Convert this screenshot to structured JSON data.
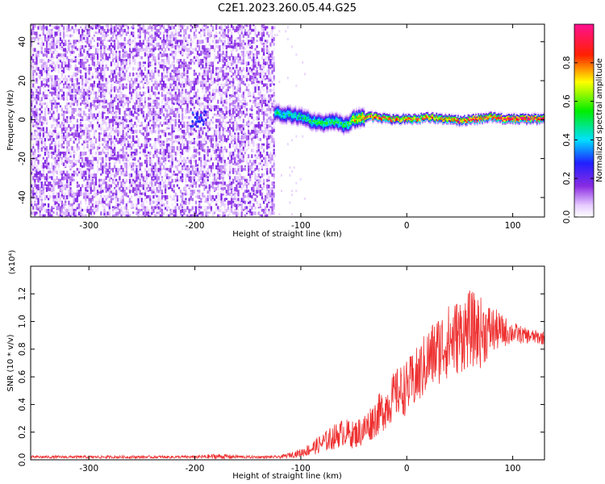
{
  "title": "C2E1.2023.260.05.44.G25",
  "chart_data": [
    {
      "type": "heatmap",
      "title": "C2E1.2023.260.05.44.G25",
      "xlabel": "Height of straight line (km)",
      "ylabel": "Frequency (Hz)",
      "xlim": [
        -355,
        130
      ],
      "ylim": [
        -50,
        49
      ],
      "x_ticks": [
        -300,
        -200,
        -100,
        0,
        100
      ],
      "x_tick_labels": [
        "-300",
        "-200",
        "-100",
        "0",
        "100"
      ],
      "y_ticks": [
        -40,
        -20,
        0,
        20,
        40
      ],
      "y_tick_labels": [
        "-40",
        "-20",
        "0",
        "20",
        "40"
      ],
      "colorbar": {
        "label": "Normalized spectral amplitude",
        "range": [
          0.0,
          1.0
        ],
        "ticks": [
          0.0,
          0.2,
          0.4,
          0.6,
          0.8
        ],
        "tick_labels": [
          "0.0",
          "0.2",
          "0.4",
          "0.6",
          "0.8"
        ],
        "colormap": "rainbow (white-purple-blue-cyan-green-yellow-red-magenta)"
      },
      "features": [
        {
          "description": "broadband noise",
          "x_range": [
            -355,
            -125
          ],
          "freq_range": [
            -50,
            49
          ],
          "amplitude": 0.1
        },
        {
          "description": "weak patch",
          "x_range": [
            -205,
            -190
          ],
          "freq_center": 1,
          "amplitude": 0.25
        },
        {
          "description": "signal line",
          "x_range": [
            -125,
            130
          ],
          "x": [
            -125,
            -110,
            -100,
            -90,
            -80,
            -70,
            -60,
            -55,
            -50,
            -40,
            -30,
            -20,
            -10,
            0,
            10,
            20,
            30,
            40,
            50,
            60,
            70,
            80,
            90,
            100,
            110,
            120,
            130
          ],
          "freq": [
            3,
            2,
            1,
            -1,
            -2,
            -1,
            -3,
            -2,
            0,
            1,
            1,
            0,
            0,
            0,
            0,
            1,
            0,
            0,
            -1,
            0,
            0,
            1,
            0,
            0,
            0,
            0,
            0
          ],
          "amplitude": [
            0.45,
            0.45,
            0.45,
            0.5,
            0.5,
            0.5,
            0.5,
            0.55,
            0.7,
            0.85,
            0.85,
            0.85,
            0.85,
            0.85,
            0.85,
            0.85,
            0.85,
            0.85,
            0.85,
            0.9,
            0.9,
            0.9,
            0.95,
            0.95,
            0.95,
            0.95,
            0.95
          ]
        }
      ]
    },
    {
      "type": "line",
      "xlabel": "Height of straight line (km)",
      "ylabel": "SNR (10 * v/v)",
      "y_multiplier": "(x10⁴)",
      "xlim": [
        -355,
        130
      ],
      "ylim": [
        0.0,
        1.4
      ],
      "x_ticks": [
        -300,
        -200,
        -100,
        0,
        100
      ],
      "x_tick_labels": [
        "-300",
        "-200",
        "-100",
        "0",
        "100"
      ],
      "y_ticks": [
        0.0,
        0.2,
        0.4,
        0.6,
        0.8,
        1.0,
        1.2
      ],
      "y_tick_labels": [
        "0.0",
        "0.2",
        "0.4",
        "0.6",
        "0.8",
        "1.0",
        "1.2"
      ],
      "series": [
        {
          "color": "#ee3030",
          "x": [
            -355,
            -300,
            -250,
            -200,
            -180,
            -150,
            -120,
            -100,
            -90,
            -80,
            -70,
            -60,
            -50,
            -40,
            -30,
            -20,
            -10,
            0,
            10,
            20,
            30,
            40,
            50,
            60,
            70,
            80,
            90,
            100,
            110,
            120,
            130
          ],
          "y": [
            0.02,
            0.02,
            0.02,
            0.02,
            0.025,
            0.02,
            0.02,
            0.05,
            0.08,
            0.12,
            0.16,
            0.2,
            0.18,
            0.22,
            0.3,
            0.38,
            0.48,
            0.52,
            0.6,
            0.72,
            0.8,
            0.86,
            0.9,
            0.95,
            0.92,
            0.94,
            0.93,
            0.92,
            0.9,
            0.89,
            0.88
          ],
          "noise": [
            0.01,
            0.01,
            0.01,
            0.01,
            0.02,
            0.01,
            0.01,
            0.03,
            0.05,
            0.07,
            0.09,
            0.1,
            0.1,
            0.12,
            0.14,
            0.16,
            0.18,
            0.2,
            0.22,
            0.24,
            0.26,
            0.27,
            0.28,
            0.28,
            0.26,
            0.18,
            0.12,
            0.08,
            0.06,
            0.05,
            0.05
          ]
        }
      ]
    }
  ]
}
